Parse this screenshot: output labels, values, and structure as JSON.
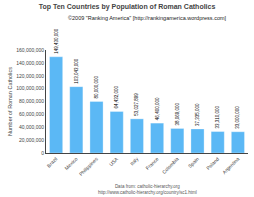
{
  "chart_data": {
    "type": "bar",
    "title": "Top Ten Countries by Population of Roman Catholics",
    "subtitle": "©2009 \"Ranking America\" [http://rankingamerica.wordpress.com]",
    "ylabel": "Number of Roman Catholics",
    "annotations": [
      "Data from: catholic-hierarchy.org",
      "http://www.catholic-hierarchy.org/country/sc1.html"
    ],
    "categories": [
      "Brazil",
      "Mexico",
      "Philippines",
      "USA",
      "Italy",
      "France",
      "Colombia",
      "Spain",
      "Poland",
      "Argentina"
    ],
    "values": [
      149430000,
      103043000,
      80000000,
      64432000,
      53027899,
      46400000,
      38069000,
      37335000,
      33310000,
      33000000
    ],
    "value_labels": [
      "149,430,000",
      "103,043,000",
      "80,000,000",
      "64,432,000",
      "53,027,899",
      "46,400,000",
      "38,069,000",
      "37,335,000",
      "33,310,000",
      "33,000,000"
    ],
    "data_labels": true,
    "color": "#5bb8f5",
    "ylim": [
      0,
      160000000
    ],
    "yticks": [
      0,
      {
        "value": 20000000,
        "label": "20,000,000"
      },
      {
        "value": 40000000,
        "label": "40,000,000"
      },
      {
        "value": 60000000,
        "label": "60,000,000"
      },
      {
        "value": 80000000,
        "label": "80,000,000"
      },
      {
        "value": 100000000,
        "label": "100,000,000"
      },
      {
        "value": 120000000,
        "label": "120,000,000"
      },
      {
        "value": 140000000,
        "label": "140,000,000"
      },
      {
        "value": 160000000,
        "label": "160,000,000"
      }
    ],
    "grid": false
  }
}
